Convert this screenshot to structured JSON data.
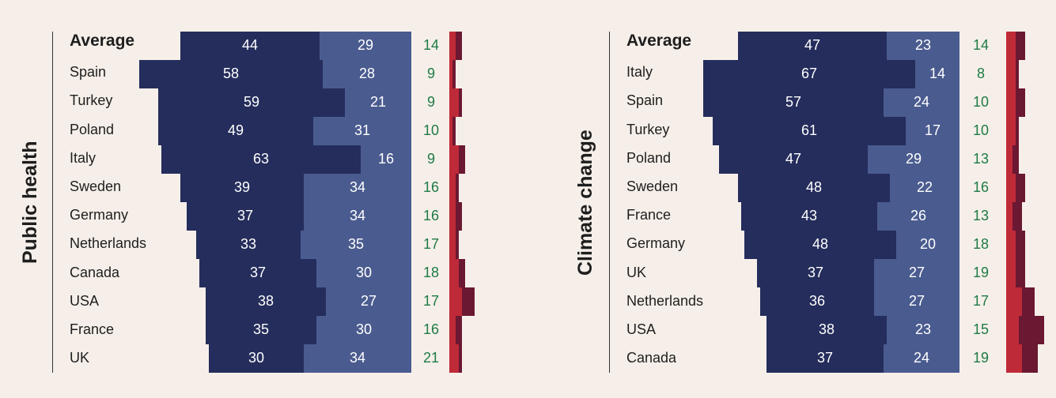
{
  "colors": {
    "navy": "#252d5c",
    "blue": "#4a5b8f",
    "green_text": "#1e7a45",
    "red": "#bf2a38",
    "dark_red": "#6b1832"
  },
  "chart_data": [
    {
      "type": "bar",
      "title": "Public health",
      "categories": [
        "Average",
        "Spain",
        "Turkey",
        "Poland",
        "Italy",
        "Sweden",
        "Germany",
        "Netherlands",
        "Canada",
        "USA",
        "France",
        "UK"
      ],
      "series": [
        {
          "values": [
            44,
            58,
            59,
            49,
            63,
            39,
            37,
            33,
            37,
            38,
            35,
            30
          ]
        },
        {
          "values": [
            29,
            28,
            21,
            31,
            16,
            34,
            34,
            35,
            30,
            27,
            30,
            34
          ]
        },
        {
          "values": [
            14,
            9,
            9,
            10,
            9,
            16,
            16,
            17,
            18,
            17,
            16,
            21
          ]
        },
        {
          "values": [
            2,
            1,
            3,
            1,
            3,
            2,
            2,
            2,
            3,
            4,
            2,
            3
          ]
        },
        {
          "values": [
            2,
            1,
            1,
            1,
            2,
            1,
            2,
            1,
            2,
            4,
            2,
            1
          ]
        }
      ]
    },
    {
      "type": "bar",
      "title": "Climate change",
      "categories": [
        "Average",
        "Italy",
        "Spain",
        "Turkey",
        "Poland",
        "Sweden",
        "France",
        "Germany",
        "UK",
        "Netherlands",
        "USA",
        "Canada"
      ],
      "series": [
        {
          "values": [
            47,
            67,
            57,
            61,
            47,
            48,
            43,
            48,
            37,
            36,
            38,
            37
          ]
        },
        {
          "values": [
            23,
            14,
            24,
            17,
            29,
            22,
            26,
            20,
            27,
            27,
            23,
            24
          ]
        },
        {
          "values": [
            14,
            8,
            10,
            10,
            13,
            16,
            13,
            18,
            19,
            17,
            15,
            19
          ]
        },
        {
          "values": [
            3,
            3,
            3,
            3,
            2,
            3,
            2,
            3,
            3,
            5,
            4,
            5
          ]
        },
        {
          "values": [
            3,
            1,
            3,
            1,
            2,
            3,
            3,
            3,
            3,
            4,
            8,
            5
          ]
        }
      ]
    }
  ]
}
